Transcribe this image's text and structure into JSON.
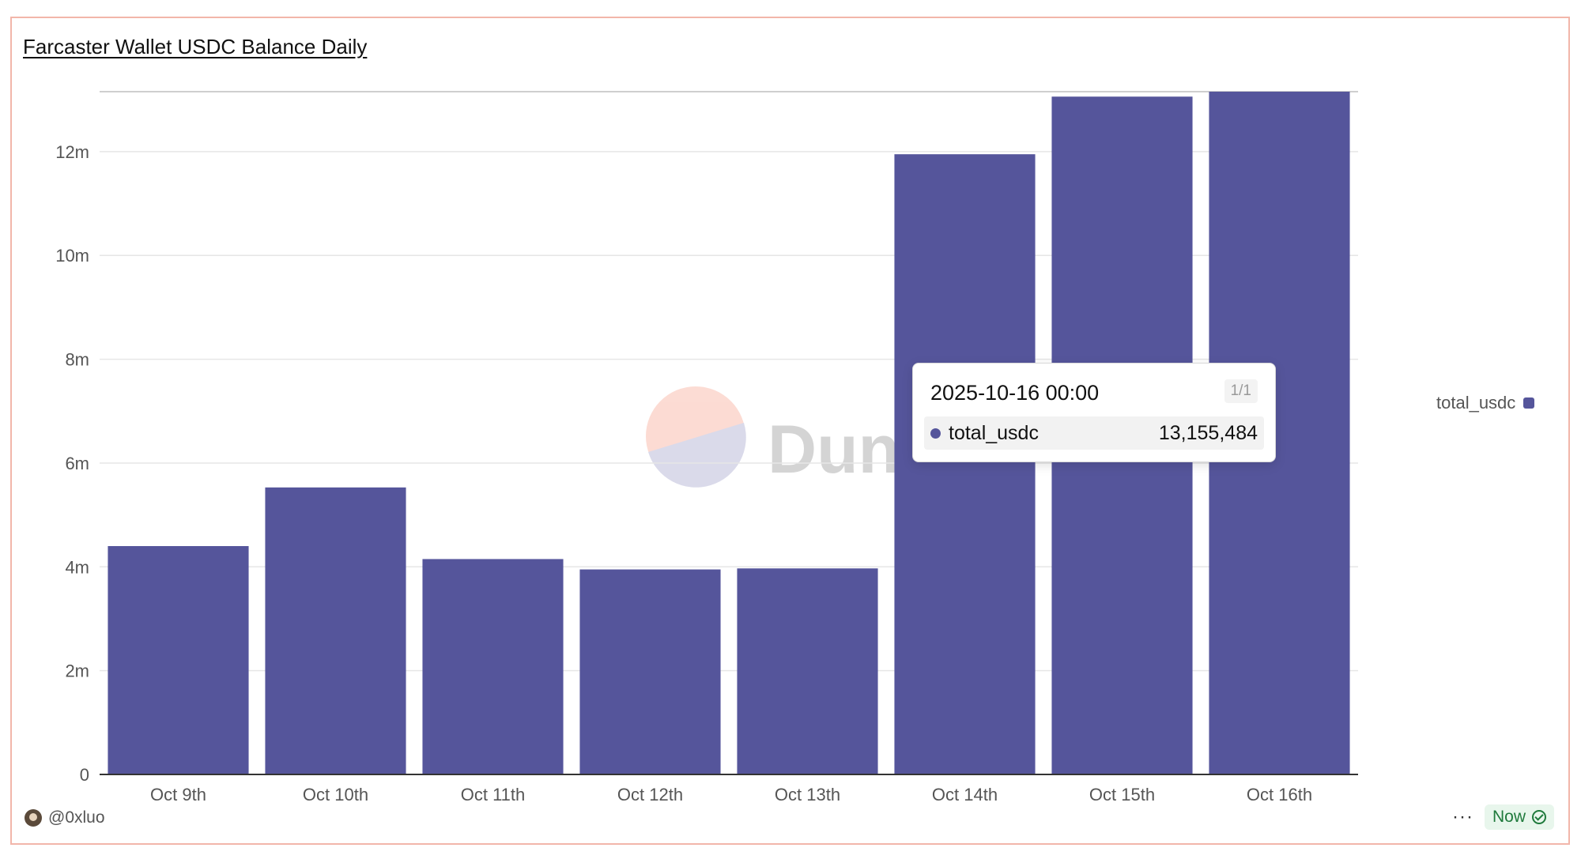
{
  "card": {
    "title": "Farcaster Wallet USDC Balance Daily",
    "author": "@0xluo",
    "status_label": "Now",
    "more_label": "···"
  },
  "watermark": {
    "text": "Dune"
  },
  "legend": {
    "label": "total_usdc"
  },
  "tooltip": {
    "date": "2025-10-16 00:00",
    "page": "1/1",
    "series": "total_usdc",
    "value": "13,155,484"
  },
  "colors": {
    "bar": "#55559b",
    "grid": "#e6e6e6",
    "axis_text": "#555555",
    "border": "#f2b6aa"
  },
  "chart_data": {
    "type": "bar",
    "categories": [
      "Oct 9th",
      "Oct 10th",
      "Oct 11th",
      "Oct 12th",
      "Oct 13th",
      "Oct 14th",
      "Oct 15th",
      "Oct 16th"
    ],
    "series": [
      {
        "name": "total_usdc",
        "values": [
          4400000,
          5530000,
          4150000,
          3950000,
          3970000,
          11950000,
          13060000,
          13155484
        ]
      }
    ],
    "ylim": [
      0,
      13155484
    ],
    "yticks": [
      0,
      2000000,
      4000000,
      6000000,
      8000000,
      10000000,
      12000000
    ],
    "ytick_labels": [
      "0",
      "2m",
      "4m",
      "6m",
      "8m",
      "10m",
      "12m"
    ],
    "grid": true,
    "legend_position": "right"
  }
}
